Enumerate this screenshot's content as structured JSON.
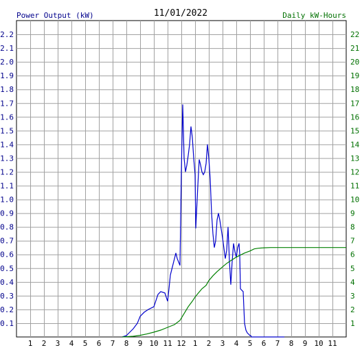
{
  "chart_data": {
    "type": "line",
    "title": "11/01/2022",
    "left_axis_label": "Power Output (kW)",
    "right_axis_label": "Daily kW-Hours",
    "x_tick_labels": [
      "1",
      "2",
      "3",
      "4",
      "5",
      "6",
      "7",
      "8",
      "9",
      "10",
      "11",
      "12",
      "1",
      "2",
      "3",
      "4",
      "5",
      "6",
      "7",
      "8",
      "9",
      "10",
      "11"
    ],
    "left_ylim": [
      0,
      2.3
    ],
    "left_ticks": [
      "0.1",
      "0.2",
      "0.3",
      "0.4",
      "0.5",
      "0.6",
      "0.7",
      "0.8",
      "0.9",
      "1.0",
      "1.1",
      "1.2",
      "1.3",
      "1.4",
      "1.5",
      "1.6",
      "1.7",
      "1.8",
      "1.9",
      "2.0",
      "2.1",
      "2.2"
    ],
    "right_ylim": [
      0,
      23
    ],
    "right_ticks": [
      "1",
      "2",
      "3",
      "4",
      "5",
      "6",
      "7",
      "8",
      "9",
      "10",
      "11",
      "12",
      "13",
      "14",
      "15",
      "16",
      "17",
      "18",
      "19",
      "20",
      "21",
      "22"
    ],
    "grid": true,
    "x_range_hours": [
      0,
      24
    ],
    "series": [
      {
        "axis": "left",
        "color": "#0000cc",
        "x": [
          7.7,
          8.0,
          8.2,
          8.5,
          8.8,
          9.0,
          9.3,
          9.6,
          10.0,
          10.3,
          10.5,
          10.8,
          11.0,
          11.1,
          11.2,
          11.4,
          11.6,
          11.7,
          11.9,
          12.0,
          12.1,
          12.15,
          12.2,
          12.3,
          12.4,
          12.5,
          12.6,
          12.7,
          12.8,
          12.9,
          13.0,
          13.05,
          13.2,
          13.3,
          13.4,
          13.5,
          13.6,
          13.7,
          13.8,
          13.9,
          14.0,
          14.1,
          14.2,
          14.3,
          14.4,
          14.5,
          14.6,
          14.7,
          14.8,
          15.0,
          15.2,
          15.3,
          15.4,
          15.5,
          15.6,
          15.7,
          15.8,
          15.9,
          16.0,
          16.1,
          16.2,
          16.25,
          16.3,
          16.4,
          16.5,
          16.6,
          16.7,
          16.8,
          16.9,
          17.0,
          17.05,
          17.1,
          17.2,
          17.3,
          17.4,
          17.5,
          17.6,
          17.7,
          17.8,
          17.9,
          18.0,
          18.2,
          18.5,
          18.8,
          19.0,
          19.5
        ],
        "y": [
          0.0,
          0.01,
          0.03,
          0.06,
          0.1,
          0.15,
          0.18,
          0.2,
          0.22,
          0.31,
          0.33,
          0.32,
          0.26,
          0.35,
          0.45,
          0.53,
          0.61,
          0.57,
          0.52,
          1.2,
          1.69,
          1.5,
          1.3,
          1.2,
          1.25,
          1.32,
          1.4,
          1.53,
          1.45,
          1.3,
          1.18,
          0.79,
          1.1,
          1.29,
          1.25,
          1.2,
          1.18,
          1.2,
          1.26,
          1.4,
          1.3,
          1.15,
          0.9,
          0.75,
          0.65,
          0.7,
          0.85,
          0.9,
          0.85,
          0.72,
          0.57,
          0.63,
          0.8,
          0.55,
          0.38,
          0.55,
          0.68,
          0.62,
          0.58,
          0.65,
          0.68,
          0.6,
          0.35,
          0.34,
          0.33,
          0.1,
          0.05,
          0.03,
          0.02,
          0.01,
          0.01,
          0.0,
          0.0,
          0.0,
          0.0,
          0.0,
          0.0,
          0.0,
          0.0,
          0.0,
          0.0,
          0.0,
          0.0,
          0.0,
          0.0,
          0.0
        ]
      },
      {
        "axis": "right",
        "color": "#008000",
        "x": [
          7.7,
          8.5,
          9.0,
          9.5,
          10.0,
          10.5,
          11.0,
          11.5,
          11.9,
          12.2,
          12.5,
          12.8,
          13.0,
          13.2,
          13.5,
          13.8,
          14.0,
          14.3,
          14.6,
          15.0,
          15.3,
          15.6,
          16.0,
          16.3,
          16.6,
          17.0,
          17.3,
          17.6,
          18.0,
          18.5,
          19.0,
          20.0,
          21.0,
          22.0,
          23.0,
          24.0
        ],
        "y": [
          0.0,
          0.05,
          0.12,
          0.22,
          0.35,
          0.5,
          0.7,
          0.9,
          1.2,
          1.7,
          2.2,
          2.6,
          2.9,
          3.15,
          3.5,
          3.75,
          4.1,
          4.45,
          4.75,
          5.1,
          5.35,
          5.55,
          5.8,
          5.95,
          6.1,
          6.25,
          6.4,
          6.45,
          6.48,
          6.5,
          6.5,
          6.5,
          6.5,
          6.5,
          6.5,
          6.5
        ]
      }
    ]
  }
}
